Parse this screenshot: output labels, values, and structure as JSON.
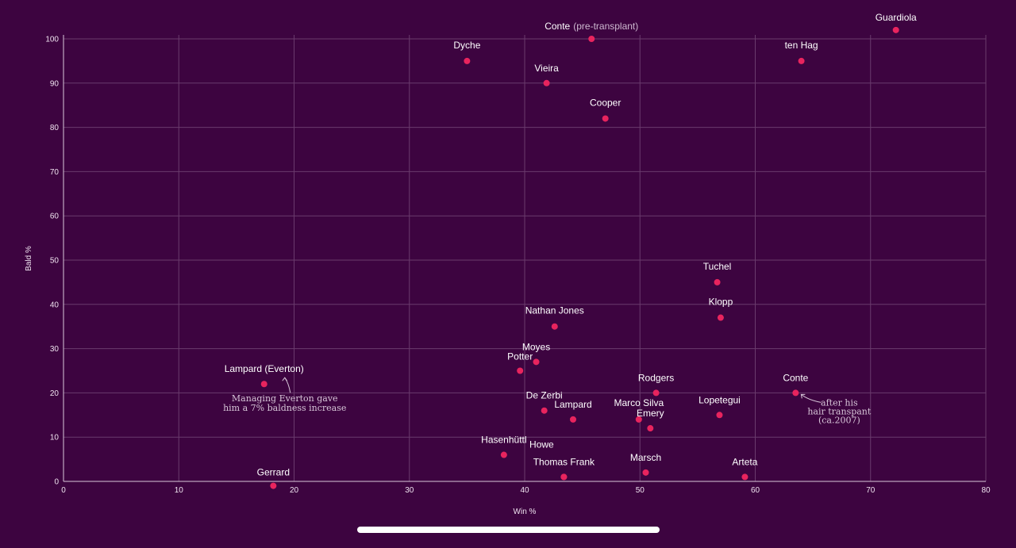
{
  "chart_data": {
    "type": "scatter",
    "xlabel": "Win %",
    "ylabel": "Bald %",
    "xlim": [
      0,
      80
    ],
    "ylim": [
      0,
      100
    ],
    "x_ticks": [
      0,
      10,
      20,
      30,
      40,
      50,
      60,
      70,
      80
    ],
    "y_ticks": [
      0,
      10,
      20,
      30,
      40,
      50,
      60,
      70,
      80,
      90,
      100
    ],
    "grid": true,
    "legend": "none",
    "colors": {
      "background": "#3d0440",
      "point": "#e8245e",
      "grid": "#6a3b6d",
      "text": "#ffffff"
    },
    "points": [
      {
        "label": "Guardiola",
        "suffix": "",
        "x": 72.2,
        "y": 102
      },
      {
        "label": "Conte",
        "suffix": "(pre-transplant)",
        "x": 45.8,
        "y": 100
      },
      {
        "label": "Dyche",
        "suffix": "",
        "x": 35.0,
        "y": 95
      },
      {
        "label": "ten Hag",
        "suffix": "",
        "x": 64.0,
        "y": 95
      },
      {
        "label": "Vieira",
        "suffix": "",
        "x": 41.9,
        "y": 90
      },
      {
        "label": "Cooper",
        "suffix": "",
        "x": 47.0,
        "y": 82
      },
      {
        "label": "Tuchel",
        "suffix": "",
        "x": 56.7,
        "y": 45
      },
      {
        "label": "Klopp",
        "suffix": "",
        "x": 57.0,
        "y": 37
      },
      {
        "label": "Nathan Jones",
        "suffix": "",
        "x": 42.6,
        "y": 35
      },
      {
        "label": "Moyes",
        "suffix": "",
        "x": 41.0,
        "y": 27
      },
      {
        "label": "Potter",
        "suffix": "",
        "x": 39.6,
        "y": 25
      },
      {
        "label": "Lampard (Everton)",
        "suffix": "",
        "x": 17.4,
        "y": 22
      },
      {
        "label": "Rodgers",
        "suffix": "",
        "x": 51.4,
        "y": 20
      },
      {
        "label": "Conte",
        "suffix": "",
        "x": 63.5,
        "y": 20
      },
      {
        "label": "De Zerbi",
        "suffix": "",
        "x": 41.7,
        "y": 16
      },
      {
        "label": "Lopetegui",
        "suffix": "",
        "x": 56.9,
        "y": 15
      },
      {
        "label": "Lampard",
        "suffix": "",
        "x": 44.2,
        "y": 14
      },
      {
        "label": "Marco Silva",
        "suffix": "",
        "x": 49.9,
        "y": 14
      },
      {
        "label": "Emery",
        "suffix": "",
        "x": 50.9,
        "y": 12
      },
      {
        "label": "Hasenhüttl",
        "suffix": "",
        "x": 38.2,
        "y": 6
      },
      {
        "label": "Howe",
        "suffix": "",
        "x": 43.4,
        "y": 1
      },
      {
        "label": "Thomas Frank",
        "suffix": "",
        "x": 43.4,
        "y": 1
      },
      {
        "label": "Marsch",
        "suffix": "",
        "x": 50.5,
        "y": 2
      },
      {
        "label": "Arteta",
        "suffix": "",
        "x": 59.1,
        "y": 1
      },
      {
        "label": "Gerrard",
        "suffix": "",
        "x": 18.2,
        "y": -1
      }
    ],
    "annotations": [
      {
        "target": "Lampard (Everton)",
        "lines": [
          "Managing Everton gave",
          "him a 7% baldness increase"
        ]
      },
      {
        "target": "Conte",
        "lines": [
          "after his",
          "hair transpant",
          "(ca.2007)"
        ]
      }
    ]
  }
}
